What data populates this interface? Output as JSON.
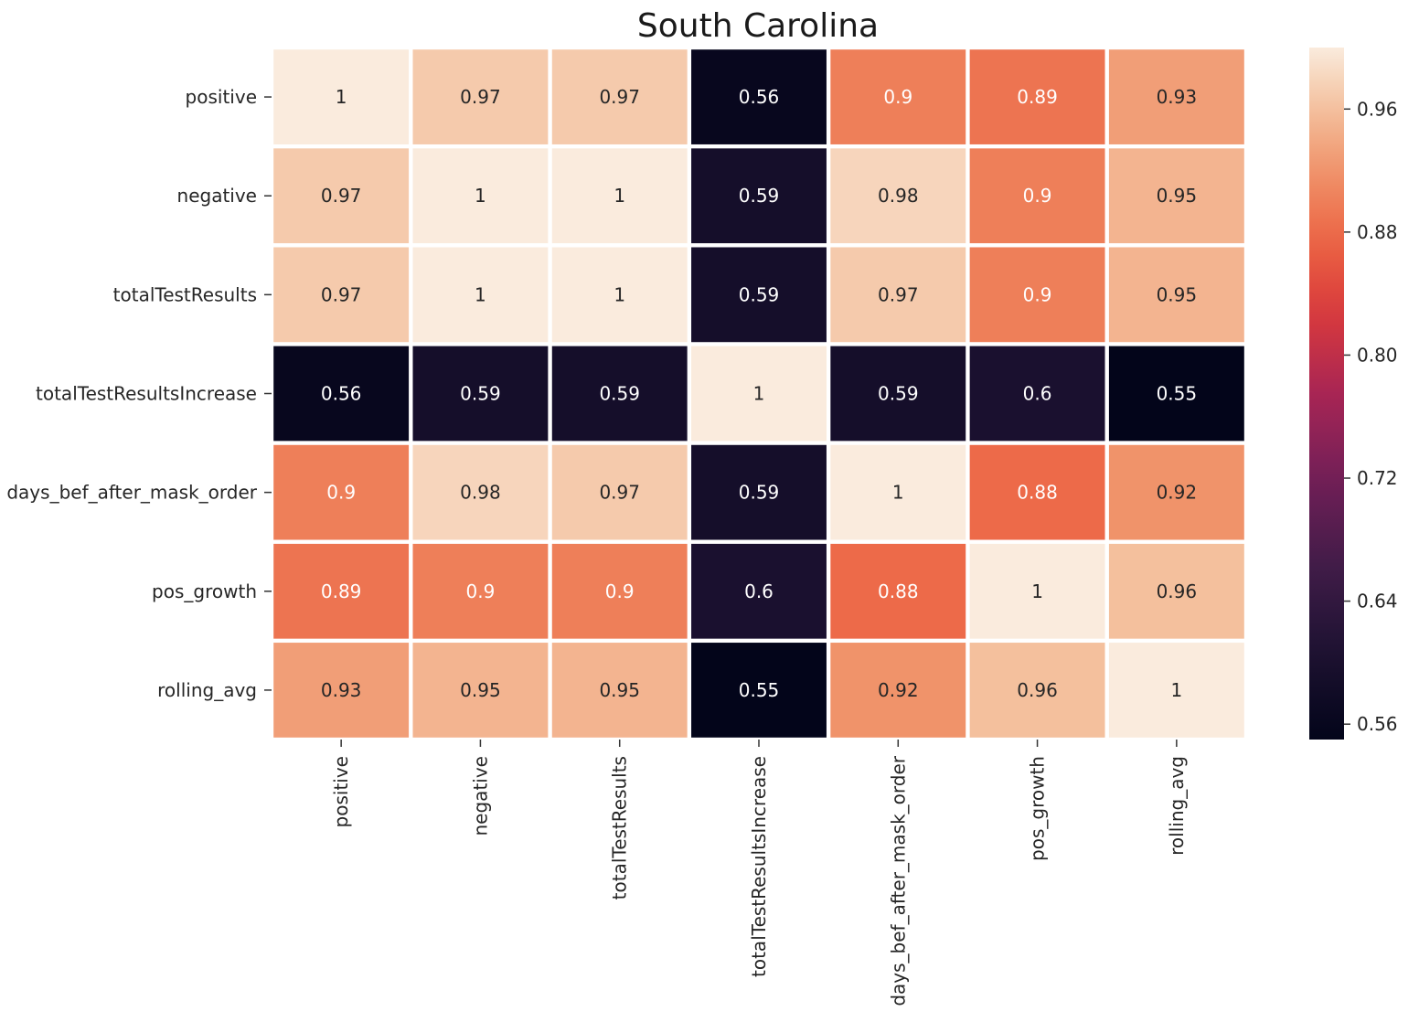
{
  "chart_data": {
    "type": "heatmap",
    "title": "South Carolina",
    "row_labels": [
      "positive",
      "negative",
      "totalTestResults",
      "totalTestResultsIncrease",
      "days_bef_after_mask_order",
      "pos_growth",
      "rolling_avg"
    ],
    "col_labels": [
      "positive",
      "negative",
      "totalTestResults",
      "totalTestResultsIncrease",
      "days_bef_after_mask_order",
      "pos_growth",
      "rolling_avg"
    ],
    "values": [
      [
        1,
        0.97,
        0.97,
        0.56,
        0.9,
        0.89,
        0.93
      ],
      [
        0.97,
        1,
        1,
        0.59,
        0.98,
        0.9,
        0.95
      ],
      [
        0.97,
        1,
        1,
        0.59,
        0.97,
        0.9,
        0.95
      ],
      [
        0.56,
        0.59,
        0.59,
        1,
        0.59,
        0.6,
        0.55
      ],
      [
        0.9,
        0.98,
        0.97,
        0.59,
        1,
        0.88,
        0.92
      ],
      [
        0.89,
        0.9,
        0.9,
        0.6,
        0.88,
        1,
        0.96
      ],
      [
        0.93,
        0.95,
        0.95,
        0.55,
        0.92,
        0.96,
        1
      ]
    ],
    "colorbar": {
      "min": 0.55,
      "max": 1.0,
      "ticks": [
        0.56,
        0.64,
        0.72,
        0.8,
        0.88,
        0.96
      ],
      "tick_labels": [
        "0.56",
        "0.64",
        "0.72",
        "0.80",
        "0.88",
        "0.96"
      ],
      "colormap": "rocket"
    },
    "grid_line_color": "#ffffff",
    "annotations": true
  }
}
